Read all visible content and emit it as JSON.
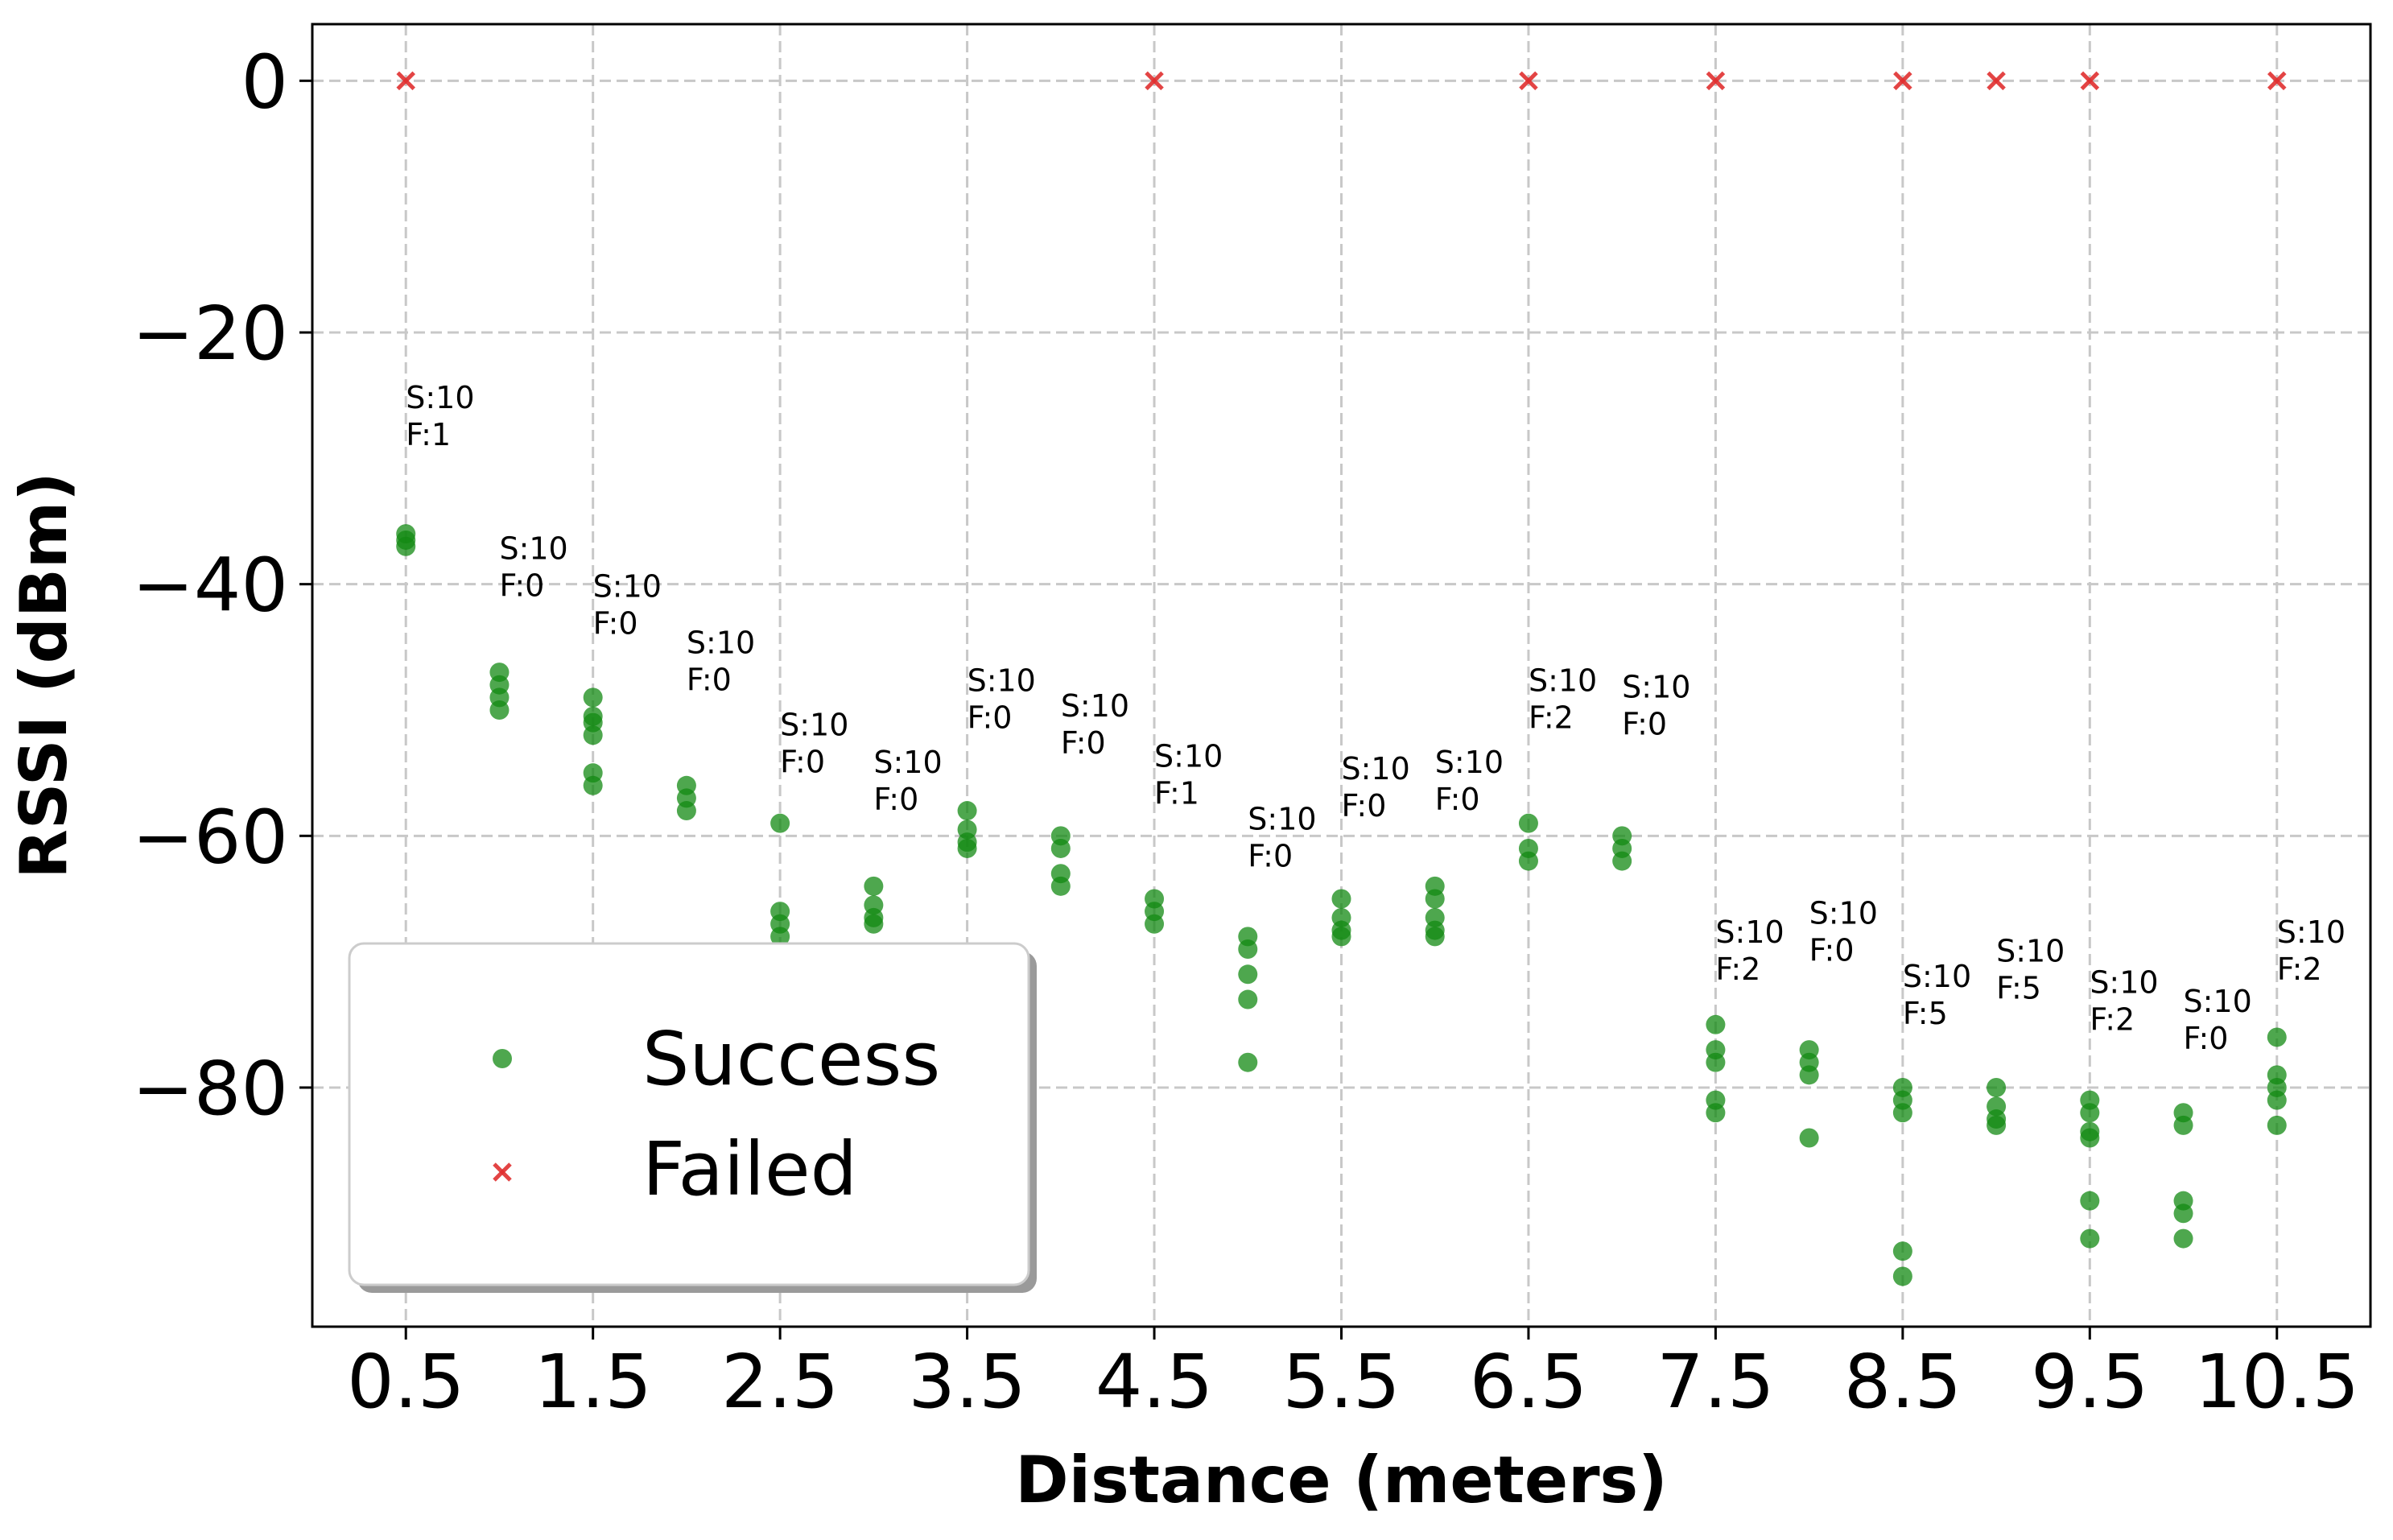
{
  "chart_data": {
    "type": "scatter",
    "xlabel": "Distance (meters)",
    "ylabel": "RSSI (dBm)",
    "xlim": [
      0,
      11.0
    ],
    "ylim": [
      -99,
      4.5
    ],
    "x_ticks": [
      0.5,
      1.5,
      2.5,
      3.5,
      4.5,
      5.5,
      6.5,
      7.5,
      8.5,
      9.5,
      10.5
    ],
    "x_tick_labels": [
      "0.5",
      "1.5",
      "2.5",
      "3.5",
      "4.5",
      "5.5",
      "6.5",
      "7.5",
      "8.5",
      "9.5",
      "10.5"
    ],
    "y_ticks": [
      0,
      -20,
      -40,
      -60,
      -80
    ],
    "y_tick_labels": [
      "0",
      "−20",
      "−40",
      "−60",
      "−80"
    ],
    "grid": true,
    "legend_position": "lower-left",
    "colors": {
      "success": "#138a13",
      "failed": "#e03030"
    },
    "series": [
      {
        "name": "Success",
        "marker": "circle",
        "points": [
          [
            0.5,
            -36
          ],
          [
            0.5,
            -36.5
          ],
          [
            0.5,
            -37
          ],
          [
            1.0,
            -47
          ],
          [
            1.0,
            -48
          ],
          [
            1.0,
            -49
          ],
          [
            1.0,
            -50
          ],
          [
            1.5,
            -49
          ],
          [
            1.5,
            -50.5
          ],
          [
            1.5,
            -51
          ],
          [
            1.5,
            -52
          ],
          [
            1.5,
            -55
          ],
          [
            1.5,
            -56
          ],
          [
            2.0,
            -56
          ],
          [
            2.0,
            -57
          ],
          [
            2.0,
            -58
          ],
          [
            2.5,
            -59
          ],
          [
            2.5,
            -66
          ],
          [
            2.5,
            -67
          ],
          [
            2.5,
            -68
          ],
          [
            3.0,
            -64
          ],
          [
            3.0,
            -65.5
          ],
          [
            3.0,
            -66.5
          ],
          [
            3.0,
            -67
          ],
          [
            3.5,
            -58
          ],
          [
            3.5,
            -59.5
          ],
          [
            3.5,
            -60.5
          ],
          [
            3.5,
            -61
          ],
          [
            4.0,
            -60
          ],
          [
            4.0,
            -61
          ],
          [
            4.0,
            -63
          ],
          [
            4.0,
            -64
          ],
          [
            4.5,
            -65
          ],
          [
            4.5,
            -66
          ],
          [
            4.5,
            -67
          ],
          [
            5.0,
            -68
          ],
          [
            5.0,
            -69
          ],
          [
            5.0,
            -71
          ],
          [
            5.0,
            -73
          ],
          [
            5.0,
            -78
          ],
          [
            5.5,
            -65
          ],
          [
            5.5,
            -66.5
          ],
          [
            5.5,
            -67.5
          ],
          [
            5.5,
            -68
          ],
          [
            6.0,
            -64
          ],
          [
            6.0,
            -65
          ],
          [
            6.0,
            -66.5
          ],
          [
            6.0,
            -67.5
          ],
          [
            6.0,
            -68
          ],
          [
            6.5,
            -59
          ],
          [
            6.5,
            -61
          ],
          [
            6.5,
            -62
          ],
          [
            7.0,
            -60
          ],
          [
            7.0,
            -61
          ],
          [
            7.0,
            -62
          ],
          [
            7.5,
            -75
          ],
          [
            7.5,
            -77
          ],
          [
            7.5,
            -78
          ],
          [
            7.5,
            -81
          ],
          [
            7.5,
            -82
          ],
          [
            8.0,
            -77
          ],
          [
            8.0,
            -78
          ],
          [
            8.0,
            -79
          ],
          [
            8.0,
            -84
          ],
          [
            8.5,
            -80
          ],
          [
            8.5,
            -81
          ],
          [
            8.5,
            -82
          ],
          [
            8.5,
            -93
          ],
          [
            8.5,
            -95
          ],
          [
            9.0,
            -80
          ],
          [
            9.0,
            -81.5
          ],
          [
            9.0,
            -82.5
          ],
          [
            9.0,
            -83
          ],
          [
            9.5,
            -81
          ],
          [
            9.5,
            -82
          ],
          [
            9.5,
            -83.5
          ],
          [
            9.5,
            -84
          ],
          [
            9.5,
            -89
          ],
          [
            9.5,
            -92
          ],
          [
            10.0,
            -82
          ],
          [
            10.0,
            -83
          ],
          [
            10.0,
            -89
          ],
          [
            10.0,
            -90
          ],
          [
            10.0,
            -92
          ],
          [
            10.5,
            -76
          ],
          [
            10.5,
            -79
          ],
          [
            10.5,
            -80
          ],
          [
            10.5,
            -81
          ],
          [
            10.5,
            -83
          ]
        ]
      },
      {
        "name": "Failed",
        "marker": "x",
        "points": [
          [
            0.5,
            0
          ],
          [
            4.5,
            0
          ],
          [
            6.5,
            0
          ],
          [
            7.5,
            0
          ],
          [
            8.5,
            0
          ],
          [
            9.0,
            0
          ],
          [
            9.5,
            0
          ],
          [
            10.5,
            0
          ]
        ]
      }
    ],
    "annotations": [
      {
        "x": 0.5,
        "y": -26,
        "lines": [
          "S:10",
          "F:1"
        ]
      },
      {
        "x": 1.0,
        "y": -38,
        "lines": [
          "S:10",
          "F:0"
        ]
      },
      {
        "x": 1.5,
        "y": -41,
        "lines": [
          "S:10",
          "F:0"
        ]
      },
      {
        "x": 2.0,
        "y": -45.5,
        "lines": [
          "S:10",
          "F:0"
        ]
      },
      {
        "x": 2.5,
        "y": -52,
        "lines": [
          "S:10",
          "F:0"
        ]
      },
      {
        "x": 3.0,
        "y": -55,
        "lines": [
          "S:10",
          "F:0"
        ]
      },
      {
        "x": 3.5,
        "y": -48.5,
        "lines": [
          "S:10",
          "F:0"
        ]
      },
      {
        "x": 4.0,
        "y": -50.5,
        "lines": [
          "S:10",
          "F:0"
        ]
      },
      {
        "x": 4.5,
        "y": -54.5,
        "lines": [
          "S:10",
          "F:1"
        ]
      },
      {
        "x": 5.0,
        "y": -59.5,
        "lines": [
          "S:10",
          "F:0"
        ]
      },
      {
        "x": 5.5,
        "y": -55.5,
        "lines": [
          "S:10",
          "F:0"
        ]
      },
      {
        "x": 6.0,
        "y": -55,
        "lines": [
          "S:10",
          "F:0"
        ]
      },
      {
        "x": 6.5,
        "y": -48.5,
        "lines": [
          "S:10",
          "F:2"
        ]
      },
      {
        "x": 7.0,
        "y": -49,
        "lines": [
          "S:10",
          "F:0"
        ]
      },
      {
        "x": 7.5,
        "y": -68.5,
        "lines": [
          "S:10",
          "F:2"
        ]
      },
      {
        "x": 8.0,
        "y": -67,
        "lines": [
          "S:10",
          "F:0"
        ]
      },
      {
        "x": 8.5,
        "y": -72,
        "lines": [
          "S:10",
          "F:5"
        ]
      },
      {
        "x": 9.0,
        "y": -70,
        "lines": [
          "S:10",
          "F:5"
        ]
      },
      {
        "x": 9.5,
        "y": -72.5,
        "lines": [
          "S:10",
          "F:2"
        ]
      },
      {
        "x": 10.0,
        "y": -74,
        "lines": [
          "S:10",
          "F:0"
        ]
      },
      {
        "x": 10.5,
        "y": -68.5,
        "lines": [
          "S:10",
          "F:2"
        ]
      }
    ]
  }
}
